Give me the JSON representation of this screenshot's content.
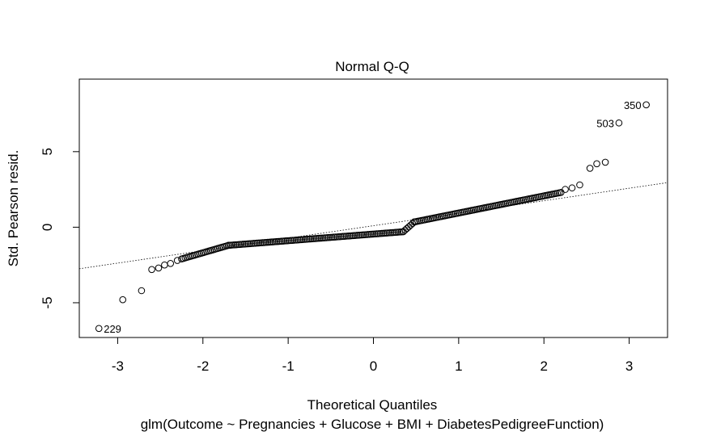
{
  "chart_data": {
    "type": "scatter",
    "title": "Normal Q-Q",
    "xlabel": "Theoretical Quantiles",
    "ylabel": "Std. Pearson resid.",
    "subtitle": "glm(Outcome ~ Pregnancies + Glucose + BMI + DiabetesPedigreeFunction)",
    "xlim": [
      -3.45,
      3.45
    ],
    "ylim": [
      -7.3,
      9.8
    ],
    "xticks": [
      -3,
      -2,
      -1,
      0,
      1,
      2,
      3
    ],
    "yticks": [
      -5,
      0,
      5
    ],
    "reference_line": {
      "x": [
        -3.45,
        3.45
      ],
      "y": [
        -2.75,
        2.95
      ],
      "style": "dotted"
    },
    "grid": false,
    "legend": "none",
    "labeled_points": [
      {
        "label": "229",
        "x": -3.22,
        "y": -6.7
      },
      {
        "label": "503",
        "x": 2.88,
        "y": 6.9
      },
      {
        "label": "350",
        "x": 3.2,
        "y": 8.1
      }
    ],
    "outlier_points": [
      {
        "x": -2.94,
        "y": -4.8
      },
      {
        "x": -2.72,
        "y": -4.2
      },
      {
        "x": -2.6,
        "y": -2.8
      },
      {
        "x": -2.52,
        "y": -2.7
      },
      {
        "x": -2.45,
        "y": -2.5
      },
      {
        "x": -2.38,
        "y": -2.4
      },
      {
        "x": -2.3,
        "y": -2.2
      },
      {
        "x": 2.25,
        "y": 2.5
      },
      {
        "x": 2.33,
        "y": 2.6
      },
      {
        "x": 2.42,
        "y": 2.8
      },
      {
        "x": 2.54,
        "y": 3.9
      },
      {
        "x": 2.62,
        "y": 4.2
      },
      {
        "x": 2.72,
        "y": 4.3
      }
    ],
    "bulk_series": {
      "segments": [
        {
          "x_from": -2.25,
          "x_to": -1.7,
          "y_from": -2.1,
          "y_to": -1.2
        },
        {
          "x_from": -1.7,
          "x_to": 0.35,
          "y_from": -1.2,
          "y_to": -0.3
        },
        {
          "x_from": 0.35,
          "x_to": 0.48,
          "y_from": -0.3,
          "y_to": 0.35
        },
        {
          "x_from": 0.48,
          "x_to": 2.2,
          "y_from": 0.35,
          "y_to": 2.3
        }
      ]
    }
  }
}
